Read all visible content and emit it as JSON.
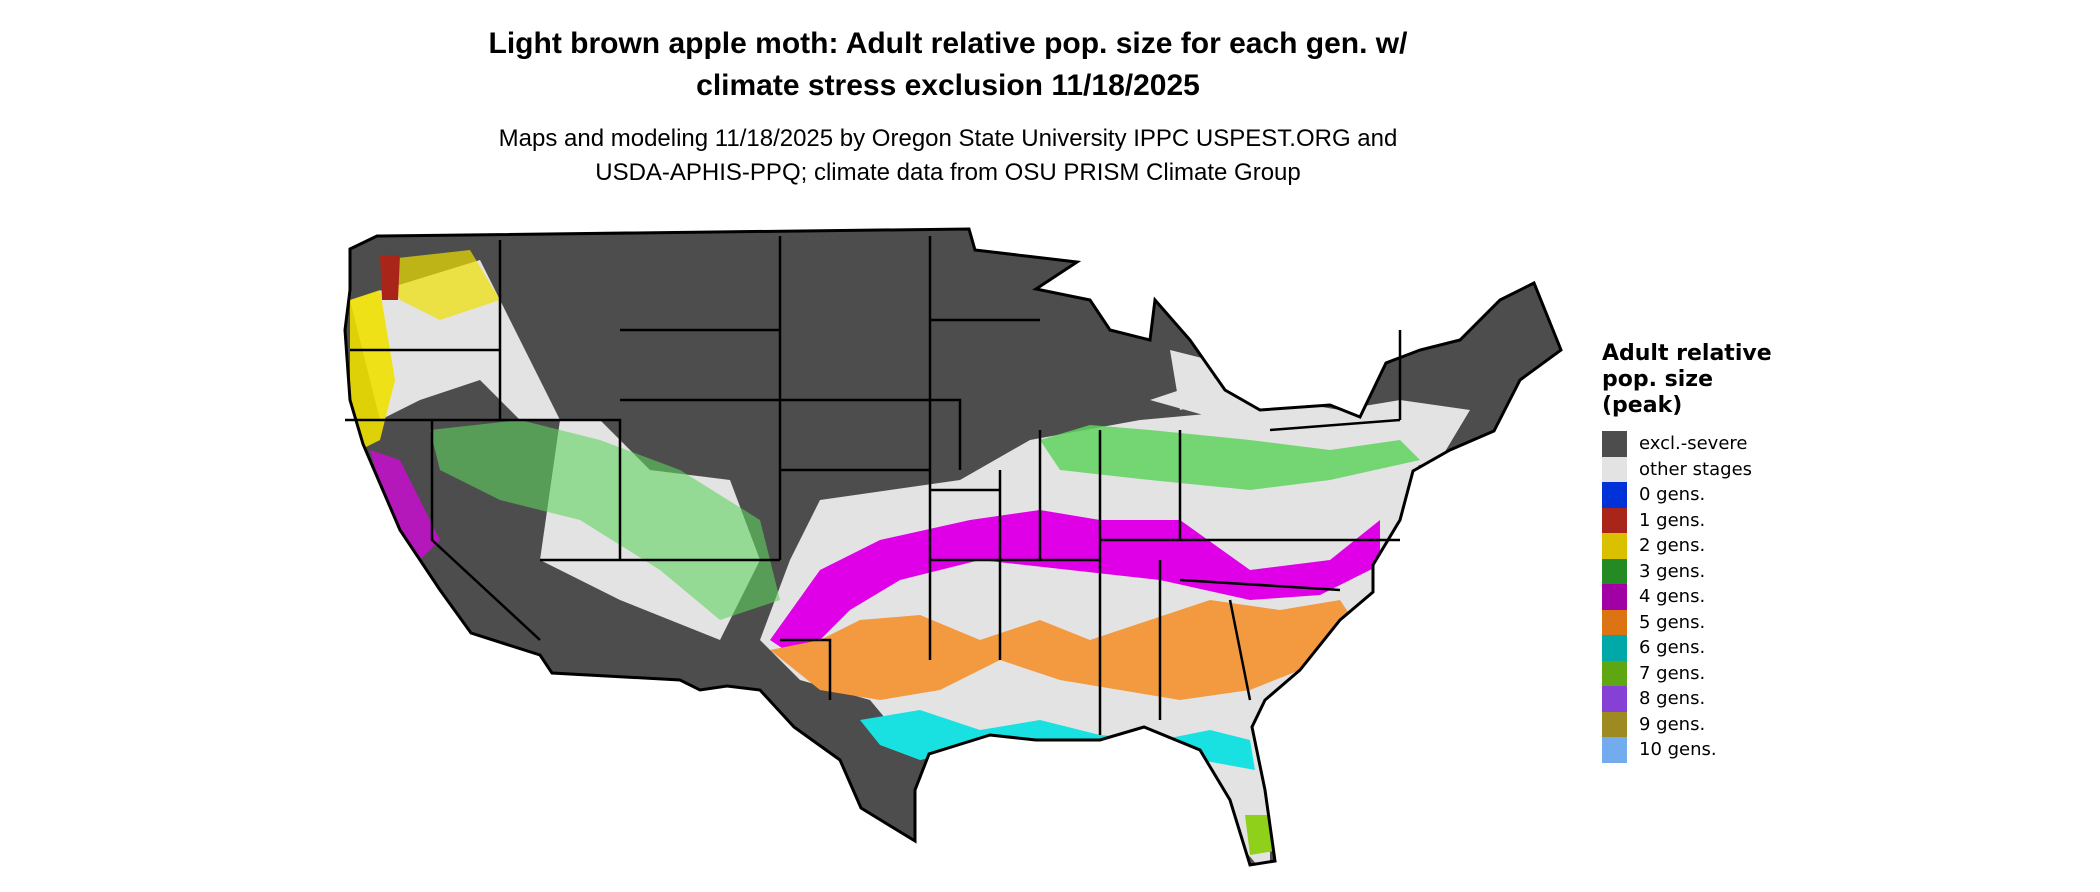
{
  "title_lines": [
    "Light brown apple moth: Adult relative pop. size for each gen. w/",
    "climate stress exclusion 11/18/2025"
  ],
  "subtitle_lines": [
    "Maps and modeling 11/18/2025 by Oregon State University IPPC USPEST.ORG and",
    "USDA-APHIS-PPQ; climate data from OSU PRISM Climate Group"
  ],
  "legend": {
    "title_lines": [
      "Adult relative",
      "pop. size",
      "(peak)"
    ],
    "items": [
      {
        "label": "excl.-severe",
        "color": "#4d4d4d"
      },
      {
        "label": "other stages",
        "color": "#e3e3e3"
      },
      {
        "label": "0 gens.",
        "color": "#0032d8"
      },
      {
        "label": "1 gens.",
        "color": "#a92419"
      },
      {
        "label": "2 gens.",
        "color": "#d9c100"
      },
      {
        "label": "3 gens.",
        "color": "#248a24"
      },
      {
        "label": "4 gens.",
        "color": "#a100a4"
      },
      {
        "label": "5 gens.",
        "color": "#dc7414"
      },
      {
        "label": "6 gens.",
        "color": "#00a8a8"
      },
      {
        "label": "7 gens.",
        "color": "#5ea612"
      },
      {
        "label": "8 gens.",
        "color": "#8740d6"
      },
      {
        "label": "9 gens.",
        "color": "#9d8b22"
      },
      {
        "label": "10 gens.",
        "color": "#72acee"
      }
    ]
  },
  "map_colors": {
    "excluded": "#4d4d4d",
    "other": "#e3e3e3",
    "gen2": "#f0e000",
    "gen3": "#5fd35f",
    "gen4": "#e000e8",
    "gen5": "#f3993f",
    "gen6": "#19e1e1",
    "gen7": "#8fd11a",
    "border": "#000000"
  }
}
